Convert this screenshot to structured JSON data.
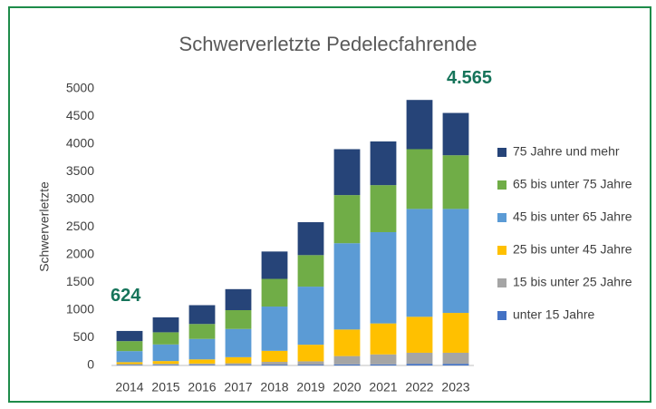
{
  "chart_data": {
    "type": "stacked_bar",
    "title": "Schwerverletzte Pedelecfahrende",
    "y_label": "Schwerverletzte",
    "categories": [
      "2014",
      "2015",
      "2016",
      "2017",
      "2018",
      "2019",
      "2020",
      "2021",
      "2022",
      "2023"
    ],
    "series": [
      {
        "name": "unter 15 Jahre",
        "color": "#4472c4",
        "values": [
          10,
          10,
          10,
          10,
          15,
          15,
          20,
          20,
          30,
          30
        ]
      },
      {
        "name": "15 bis unter 25 Jahre",
        "color": "#a5a5a5",
        "values": [
          15,
          20,
          25,
          30,
          50,
          60,
          150,
          180,
          200,
          200
        ]
      },
      {
        "name": "25 bis unter 45 Jahre",
        "color": "#ffc000",
        "values": [
          35,
          50,
          75,
          110,
          200,
          300,
          480,
          560,
          650,
          720
        ]
      },
      {
        "name": "45 bis unter 65 Jahre",
        "color": "#5b9bd5",
        "values": [
          200,
          300,
          370,
          510,
          800,
          1050,
          1560,
          1650,
          1950,
          1880
        ]
      },
      {
        "name": "65 bis unter 75 Jahre",
        "color": "#70ad47",
        "values": [
          180,
          220,
          270,
          340,
          500,
          570,
          870,
          850,
          1080,
          970
        ]
      },
      {
        "name": "75 Jahre und mehr",
        "color": "#264478",
        "values": [
          184,
          270,
          340,
          380,
          495,
          595,
          830,
          790,
          890,
          765
        ]
      }
    ],
    "annotations": [
      "624",
      "4.565"
    ],
    "ylim": [
      0,
      5000
    ],
    "yticks": [
      0,
      500,
      1000,
      1500,
      2000,
      2500,
      3000,
      3500,
      4000,
      4500,
      5000
    ],
    "grid": false,
    "legend": "right"
  }
}
